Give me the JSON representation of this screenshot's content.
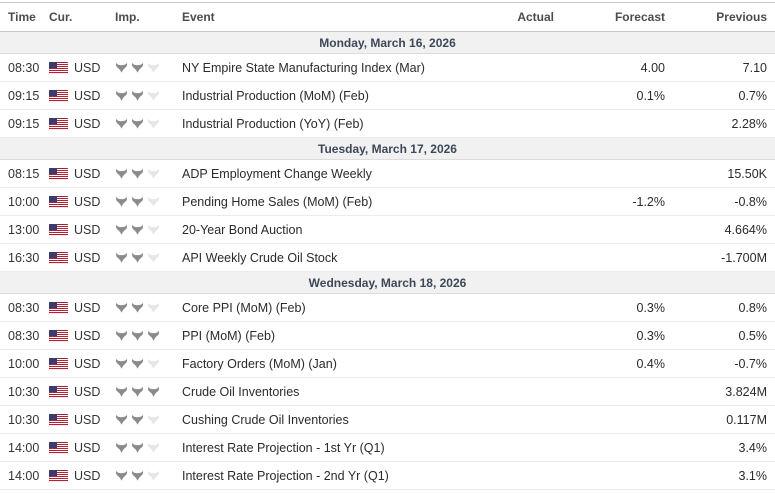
{
  "table": {
    "headers": [
      "Time",
      "Cur.",
      "Imp.",
      "Event",
      "Actual",
      "Forecast",
      "Previous"
    ],
    "currency_flag": "us-flag-icon",
    "importance_icon": "bull-icon",
    "importance_max": 3,
    "sections": [
      {
        "date_label": "Monday, March 16, 2026",
        "events": [
          {
            "time": "08:30",
            "currency": "USD",
            "importance": 2,
            "event": "NY Empire State Manufacturing Index (Mar)",
            "actual": "",
            "forecast": "4.00",
            "previous": "7.10"
          },
          {
            "time": "09:15",
            "currency": "USD",
            "importance": 2,
            "event": "Industrial Production (MoM) (Feb)",
            "actual": "",
            "forecast": "0.1%",
            "previous": "0.7%"
          },
          {
            "time": "09:15",
            "currency": "USD",
            "importance": 2,
            "event": "Industrial Production (YoY) (Feb)",
            "actual": "",
            "forecast": "",
            "previous": "2.28%"
          }
        ]
      },
      {
        "date_label": "Tuesday, March 17, 2026",
        "events": [
          {
            "time": "08:15",
            "currency": "USD",
            "importance": 2,
            "event": "ADP Employment Change Weekly",
            "actual": "",
            "forecast": "",
            "previous": "15.50K"
          },
          {
            "time": "10:00",
            "currency": "USD",
            "importance": 2,
            "event": "Pending Home Sales (MoM) (Feb)",
            "actual": "",
            "forecast": "-1.2%",
            "previous": "-0.8%"
          },
          {
            "time": "13:00",
            "currency": "USD",
            "importance": 2,
            "event": "20-Year Bond Auction",
            "actual": "",
            "forecast": "",
            "previous": "4.664%"
          },
          {
            "time": "16:30",
            "currency": "USD",
            "importance": 2,
            "event": "API Weekly Crude Oil Stock",
            "actual": "",
            "forecast": "",
            "previous": "-1.700M"
          }
        ]
      },
      {
        "date_label": "Wednesday, March 18, 2026",
        "events": [
          {
            "time": "08:30",
            "currency": "USD",
            "importance": 2,
            "event": "Core PPI (MoM) (Feb)",
            "actual": "",
            "forecast": "0.3%",
            "previous": "0.8%"
          },
          {
            "time": "08:30",
            "currency": "USD",
            "importance": 3,
            "event": "PPI (MoM) (Feb)",
            "actual": "",
            "forecast": "0.3%",
            "previous": "0.5%"
          },
          {
            "time": "10:00",
            "currency": "USD",
            "importance": 2,
            "event": "Factory Orders (MoM) (Jan)",
            "actual": "",
            "forecast": "0.4%",
            "previous": "-0.7%"
          },
          {
            "time": "10:30",
            "currency": "USD",
            "importance": 3,
            "event": "Crude Oil Inventories",
            "actual": "",
            "forecast": "",
            "previous": "3.824M"
          },
          {
            "time": "10:30",
            "currency": "USD",
            "importance": 2,
            "event": "Cushing Crude Oil Inventories",
            "actual": "",
            "forecast": "",
            "previous": "0.117M"
          },
          {
            "time": "14:00",
            "currency": "USD",
            "importance": 2,
            "event": "Interest Rate Projection - 1st Yr (Q1)",
            "actual": "",
            "forecast": "",
            "previous": "3.4%"
          },
          {
            "time": "14:00",
            "currency": "USD",
            "importance": 2,
            "event": "Interest Rate Projection - 2nd Yr (Q1)",
            "actual": "",
            "forecast": "",
            "previous": "3.1%"
          }
        ]
      }
    ]
  },
  "colors": {
    "date_row_bg": "#f1f1f2",
    "date_text": "#3d4858",
    "body_text": "#333333",
    "header_text": "#4c4c4c",
    "row_border": "#ebebeb",
    "header_border": "#c6c6c6",
    "date_border": "#dcdcdc",
    "bull_filled": "#8b8b8b",
    "bull_empty": "#e6e6e6",
    "flag_red": "#b22234",
    "flag_blue": "#3c3b6e"
  }
}
